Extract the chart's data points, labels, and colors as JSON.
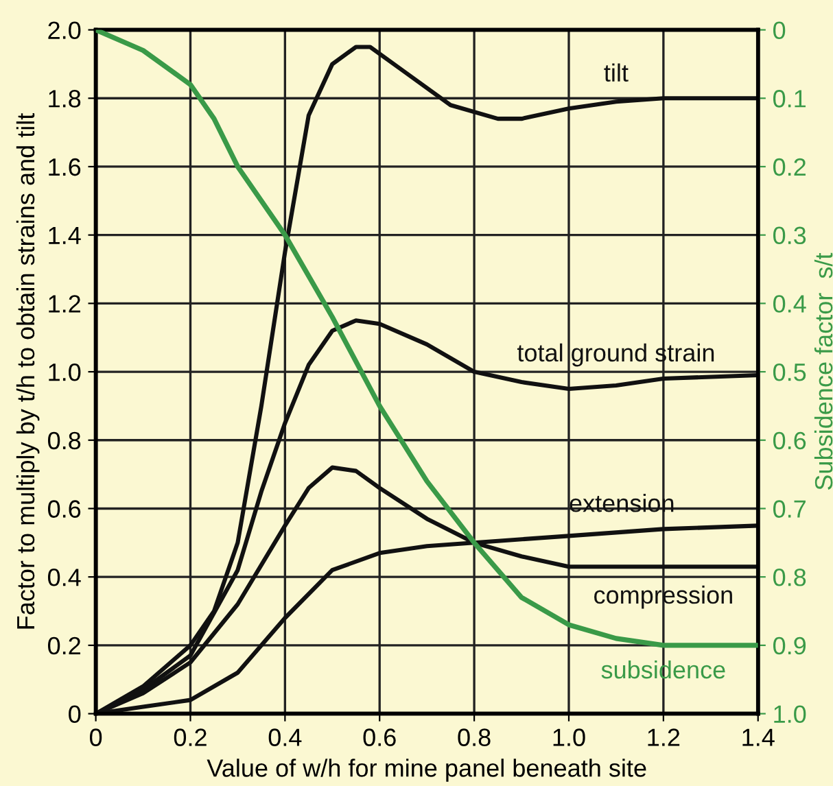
{
  "chart_data": {
    "type": "line",
    "xlabel": "Value of w/h for mine panel beneath site",
    "ylabel": "Factor to multiply by t/h to obtain strains and tilt",
    "y2label": "Subsidence factor  s/t",
    "xlim": [
      0,
      1.4
    ],
    "xticks": [
      0,
      0.2,
      0.4,
      0.6,
      0.8,
      {
        "value": 1.0,
        "label": "1.0"
      },
      1.2,
      1.4
    ],
    "ylim": [
      0,
      2.0
    ],
    "yticks": [
      0,
      0.2,
      0.4,
      0.6,
      0.8,
      {
        "value": 1.0,
        "label": "1.0"
      },
      1.2,
      1.4,
      1.6,
      1.8,
      {
        "value": 2.0,
        "label": "2.0"
      }
    ],
    "y2lim": [
      1.0,
      0
    ],
    "y2ticks": [
      {
        "value": 1.0,
        "label": "1.0"
      },
      0.9,
      0.8,
      0.7,
      0.6,
      0.5,
      0.4,
      0.3,
      0.2,
      0.1,
      0
    ],
    "grid": true,
    "legend": false,
    "marker": "none",
    "line_style": "solid",
    "series": [
      {
        "name": "tilt",
        "color": "#111111",
        "x": [
          0,
          0.1,
          0.2,
          0.25,
          0.3,
          0.35,
          0.4,
          0.45,
          0.5,
          0.55,
          0.58,
          0.65,
          0.75,
          0.85,
          0.9,
          1.0,
          1.1,
          1.2,
          1.4
        ],
        "values": [
          0,
          0.08,
          0.2,
          0.3,
          0.5,
          0.9,
          1.35,
          1.75,
          1.9,
          1.95,
          1.95,
          1.88,
          1.78,
          1.74,
          1.74,
          1.77,
          1.79,
          1.8,
          1.8
        ]
      },
      {
        "name": "total ground strain",
        "color": "#111111",
        "x": [
          0,
          0.1,
          0.2,
          0.3,
          0.35,
          0.4,
          0.45,
          0.5,
          0.55,
          0.6,
          0.7,
          0.8,
          0.9,
          1.0,
          1.1,
          1.2,
          1.4
        ],
        "values": [
          0,
          0.07,
          0.17,
          0.42,
          0.65,
          0.85,
          1.02,
          1.12,
          1.15,
          1.14,
          1.08,
          1.0,
          0.97,
          0.95,
          0.96,
          0.98,
          0.99
        ]
      },
      {
        "name": "extension",
        "color": "#111111",
        "x": [
          0,
          0.1,
          0.2,
          0.3,
          0.4,
          0.5,
          0.6,
          0.7,
          0.8,
          1.0,
          1.2,
          1.4
        ],
        "values": [
          0,
          0.02,
          0.04,
          0.12,
          0.28,
          0.42,
          0.47,
          0.49,
          0.5,
          0.52,
          0.54,
          0.55
        ]
      },
      {
        "name": "compression",
        "color": "#111111",
        "x": [
          0,
          0.1,
          0.2,
          0.3,
          0.4,
          0.45,
          0.5,
          0.55,
          0.6,
          0.7,
          0.8,
          0.9,
          1.0,
          1.2,
          1.4
        ],
        "values": [
          0,
          0.06,
          0.15,
          0.32,
          0.55,
          0.66,
          0.72,
          0.71,
          0.66,
          0.57,
          0.5,
          0.46,
          0.43,
          0.43,
          0.43
        ]
      },
      {
        "name": "subsidence",
        "color": "#3a9a48",
        "axis": "y2",
        "x": [
          0,
          0.1,
          0.2,
          0.25,
          0.3,
          0.4,
          0.5,
          0.6,
          0.7,
          0.8,
          0.9,
          1.0,
          1.1,
          1.2,
          1.4
        ],
        "values": [
          0,
          0.03,
          0.08,
          0.13,
          0.2,
          0.3,
          0.42,
          0.55,
          0.66,
          0.75,
          0.83,
          0.87,
          0.89,
          0.9,
          0.9
        ]
      }
    ]
  }
}
